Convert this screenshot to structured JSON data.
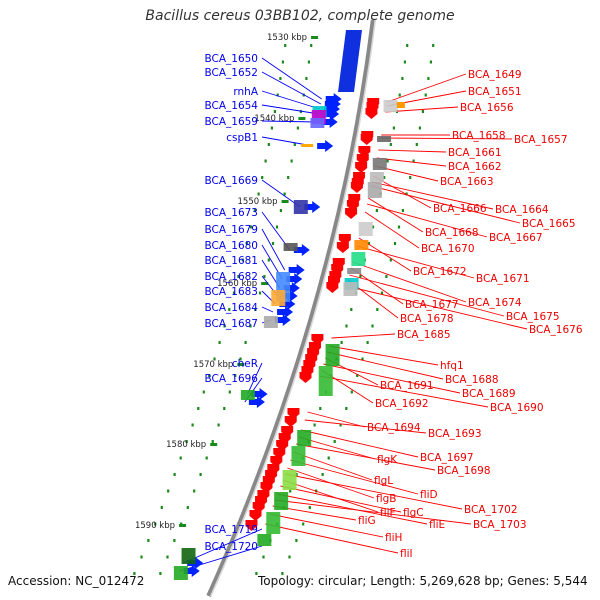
{
  "title": "Bacillus cereus 03BB102, complete genome",
  "accession_text": "Accession: NC_012472",
  "topology_text": "Topology: circular; Length: 5,269,628 bp; Genes: 5,544",
  "colors": {
    "left_label": "#0000ee",
    "right_label": "#ee0000",
    "leader_left": "#0000ff",
    "leader_right": "#ff0000",
    "backbone": "#888888",
    "ticks": "#1a8a1a",
    "forward_arrow": "#0022ff",
    "reverse_arrow": "#ff0000"
  },
  "axis_labels": [
    "1530 kbp",
    "1540 kbp",
    "1550 kbp",
    "1560 kbp",
    "1570 kbp",
    "1580 kbp",
    "1590 kbp"
  ],
  "left_genes": [
    "BCA_1650",
    "BCA_1652",
    "rnhA",
    "BCA_1654",
    "BCA_1659",
    "cspB1",
    "BCA_1669",
    "BCA_1673",
    "BCA_1679",
    "BCA_1680",
    "BCA_1681",
    "BCA_1682",
    "BCA_1683",
    "BCA_1684",
    "BCA_1687",
    "cheR",
    "BCA_1696",
    "BCA_1719",
    "BCA_1720"
  ],
  "right_genes": [
    "BCA_1649",
    "BCA_1651",
    "BCA_1656",
    "BCA_1658",
    "BCA_1657",
    "BCA_1661",
    "BCA_1662",
    "BCA_1663",
    "BCA_1666",
    "BCA_1664",
    "BCA_1665",
    "BCA_1668",
    "BCA_1667",
    "BCA_1670",
    "BCA_1672",
    "BCA_1671",
    "BCA_1674",
    "BCA_1677",
    "BCA_1675",
    "BCA_1678",
    "BCA_1676",
    "BCA_1685",
    "hfq1",
    "BCA_1688",
    "BCA_1691",
    "BCA_1689",
    "BCA_1692",
    "BCA_1690",
    "BCA_1694",
    "BCA_1693",
    "BCA_1697",
    "flgK",
    "BCA_1698",
    "flgL",
    "fliD",
    "flgB",
    "BCA_1702",
    "fliF",
    "flgC",
    "fliE",
    "BCA_1703",
    "fliG",
    "fliH",
    "fliI"
  ]
}
